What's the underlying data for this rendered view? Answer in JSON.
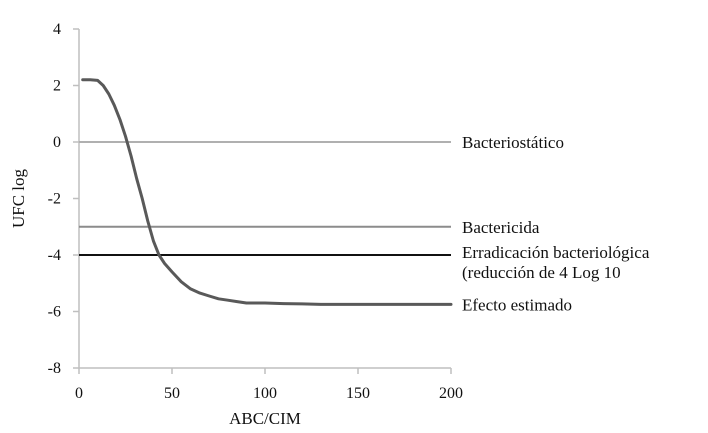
{
  "chart_data": {
    "type": "line",
    "title": "",
    "xlabel": "ABC/CIM",
    "ylabel": "UFC log",
    "xlim": [
      0,
      200
    ],
    "ylim": [
      -8,
      4
    ],
    "xticks": [
      0,
      50,
      100,
      150,
      200
    ],
    "yticks": [
      4,
      2,
      0,
      -2,
      -4,
      -6,
      -8
    ],
    "grid": false,
    "reference_lines": [
      {
        "label": "Bacteriostático",
        "y": 0,
        "color": "#b0b0b0",
        "width": 2
      },
      {
        "label": "Bactericida",
        "y": -3,
        "color": "#8c8c8c",
        "width": 2
      },
      {
        "label": "Erradicación bacteriológica (reducción de 4 Log 10",
        "label_lines": [
          "Erradicación bacteriológica",
          "(reducción de 4 Log 10"
        ],
        "y": -4,
        "color": "#111111",
        "width": 2
      }
    ],
    "series": [
      {
        "label": "Efecto estimado",
        "color": "#595959",
        "x": [
          2,
          6,
          10,
          13,
          16,
          19,
          22,
          25,
          28,
          31,
          34,
          37,
          40,
          43,
          46,
          50,
          55,
          60,
          65,
          70,
          75,
          80,
          85,
          90,
          95,
          100,
          110,
          120,
          130,
          150,
          170,
          200
        ],
        "y": [
          2.2,
          2.2,
          2.18,
          2.0,
          1.7,
          1.3,
          0.8,
          0.2,
          -0.5,
          -1.3,
          -2.0,
          -2.8,
          -3.5,
          -4.0,
          -4.3,
          -4.6,
          -4.95,
          -5.2,
          -5.35,
          -5.45,
          -5.55,
          -5.6,
          -5.65,
          -5.7,
          -5.7,
          -5.7,
          -5.72,
          -5.73,
          -5.75,
          -5.75,
          -5.75,
          -5.75
        ]
      }
    ]
  }
}
